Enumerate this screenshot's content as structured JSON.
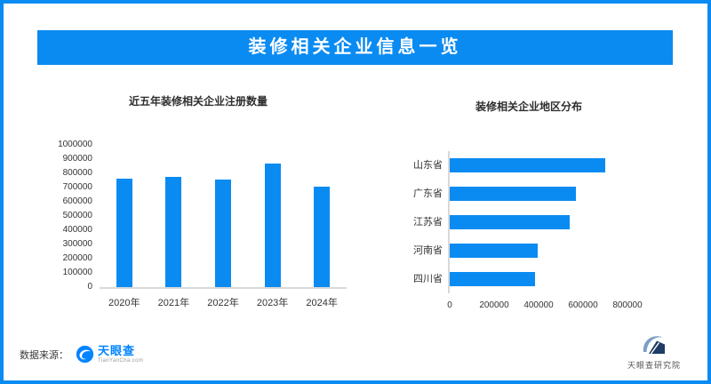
{
  "header": {
    "title": "装修相关企业信息一览"
  },
  "chart_data": [
    {
      "type": "bar",
      "orientation": "vertical",
      "title": "近五年装修相关企业注册数量",
      "categories": [
        "2020年",
        "2021年",
        "2022年",
        "2023年",
        "2024年"
      ],
      "values": [
        765000,
        772000,
        754000,
        866000,
        704000
      ],
      "xlabel": "",
      "ylabel": "",
      "ylim": [
        0,
        1000000
      ],
      "yticks": [
        0,
        100000,
        200000,
        300000,
        400000,
        500000,
        600000,
        700000,
        800000,
        900000,
        1000000
      ],
      "grid": false,
      "legend": false,
      "bar_color": "#0a8bf2"
    },
    {
      "type": "bar",
      "orientation": "horizontal",
      "title": "装修相关企业地区分布",
      "categories": [
        "山东省",
        "广东省",
        "江苏省",
        "河南省",
        "四川省"
      ],
      "values": [
        700000,
        568000,
        538000,
        396000,
        384000
      ],
      "xlabel": "",
      "ylabel": "",
      "xlim": [
        0,
        1000000
      ],
      "xticks": [
        0,
        200000,
        400000,
        600000,
        800000
      ],
      "grid": false,
      "legend": false,
      "bar_color": "#0a8bf2"
    }
  ],
  "footer": {
    "source_label": "数据来源：",
    "tianyancha_logo_text": "天眼查",
    "tianyancha_logo_domain": "TianYanCha.com",
    "research_institute_label": "天眼查研究院"
  },
  "colors": {
    "accent": "#0a8bf2",
    "bar": "#0a8bf2",
    "axis_line": "#d9d9d9",
    "tick_text": "#333333",
    "tianyancha_blue": "#0084ff",
    "shield_navy": "#1e3c64",
    "shield_swoosh": "#7c9ec7"
  }
}
